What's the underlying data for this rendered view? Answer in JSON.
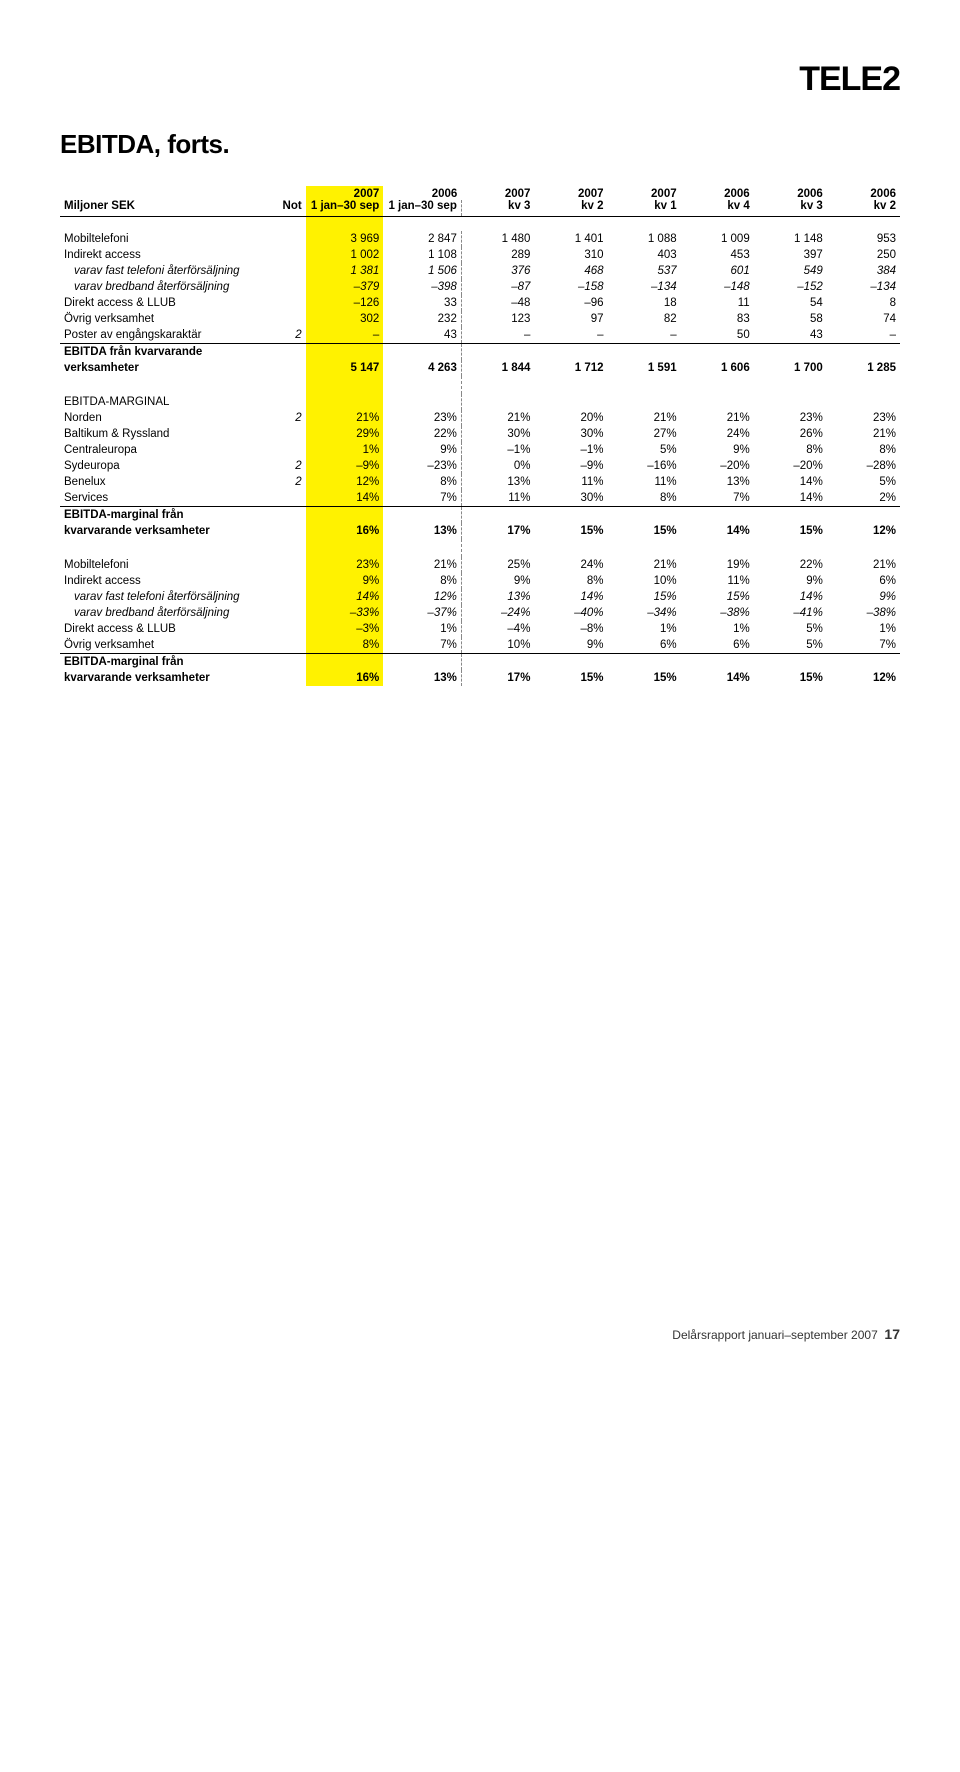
{
  "logo": "TELE2",
  "title": "EBITDA, forts.",
  "columns_left_label": "Miljoner SEK",
  "columns_not_label": "Not",
  "years": [
    "2007",
    "2006",
    "2007",
    "2007",
    "2007",
    "2006",
    "2006",
    "2006"
  ],
  "periods": [
    "1 jan–30 sep",
    "1 jan–30 sep",
    "kv 3",
    "kv 2",
    "kv 1",
    "kv 4",
    "kv 3",
    "kv 2"
  ],
  "highlight_idx": 0,
  "blocks": [
    {
      "rows": [
        {
          "label": "Mobiltelefoni",
          "not": "",
          "cells": [
            "3 969",
            "2 847",
            "1 480",
            "1 401",
            "1 088",
            "1 009",
            "1 148",
            "953"
          ]
        },
        {
          "label": "Indirekt access",
          "not": "",
          "cells": [
            "1 002",
            "1 108",
            "289",
            "310",
            "403",
            "453",
            "397",
            "250"
          ]
        },
        {
          "label": "varav fast telefoni återförsäljning",
          "not": "",
          "italic": true,
          "cells": [
            "1 381",
            "1 506",
            "376",
            "468",
            "537",
            "601",
            "549",
            "384"
          ]
        },
        {
          "label": "varav bredband återförsäljning",
          "not": "",
          "italic": true,
          "cells": [
            "–379",
            "–398",
            "–87",
            "–158",
            "–134",
            "–148",
            "–152",
            "–134"
          ]
        },
        {
          "label": "Direkt access & LLUB",
          "not": "",
          "cells": [
            "–126",
            "33",
            "–48",
            "–96",
            "18",
            "11",
            "54",
            "8"
          ]
        },
        {
          "label": "Övrig verksamhet",
          "not": "",
          "cells": [
            "302",
            "232",
            "123",
            "97",
            "82",
            "83",
            "58",
            "74"
          ]
        },
        {
          "label": "Poster av engångskaraktär",
          "not": "2",
          "cells": [
            "–",
            "43",
            "–",
            "–",
            "–",
            "50",
            "43",
            "–"
          ]
        }
      ],
      "total": {
        "label1": "EBITDA från kvarvarande",
        "label2": "verksamheter",
        "not": "",
        "cells": [
          "5 147",
          "4 263",
          "1 844",
          "1 712",
          "1 591",
          "1 606",
          "1 700",
          "1 285"
        ]
      }
    },
    {
      "heading": "EBITDA-MARGINAL",
      "rows": [
        {
          "label": "Norden",
          "not": "2",
          "cells": [
            "21%",
            "23%",
            "21%",
            "20%",
            "21%",
            "21%",
            "23%",
            "23%"
          ]
        },
        {
          "label": "Baltikum & Ryssland",
          "not": "",
          "cells": [
            "29%",
            "22%",
            "30%",
            "30%",
            "27%",
            "24%",
            "26%",
            "21%"
          ]
        },
        {
          "label": "Centraleuropa",
          "not": "",
          "cells": [
            "1%",
            "9%",
            "–1%",
            "–1%",
            "5%",
            "9%",
            "8%",
            "8%"
          ]
        },
        {
          "label": "Sydeuropa",
          "not": "2",
          "cells": [
            "–9%",
            "–23%",
            "0%",
            "–9%",
            "–16%",
            "–20%",
            "–20%",
            "–28%"
          ]
        },
        {
          "label": "Benelux",
          "not": "2",
          "cells": [
            "12%",
            "8%",
            "13%",
            "11%",
            "11%",
            "13%",
            "14%",
            "5%"
          ]
        },
        {
          "label": "Services",
          "not": "",
          "cells": [
            "14%",
            "7%",
            "11%",
            "30%",
            "8%",
            "7%",
            "14%",
            "2%"
          ]
        }
      ],
      "total": {
        "label1": "EBITDA-marginal från",
        "label2": "kvarvarande verksamheter",
        "not": "",
        "cells": [
          "16%",
          "13%",
          "17%",
          "15%",
          "15%",
          "14%",
          "15%",
          "12%"
        ]
      }
    },
    {
      "rows": [
        {
          "label": "Mobiltelefoni",
          "not": "",
          "cells": [
            "23%",
            "21%",
            "25%",
            "24%",
            "21%",
            "19%",
            "22%",
            "21%"
          ]
        },
        {
          "label": "Indirekt access",
          "not": "",
          "cells": [
            "9%",
            "8%",
            "9%",
            "8%",
            "10%",
            "11%",
            "9%",
            "6%"
          ]
        },
        {
          "label": "varav fast telefoni återförsäljning",
          "not": "",
          "italic": true,
          "cells": [
            "14%",
            "12%",
            "13%",
            "14%",
            "15%",
            "15%",
            "14%",
            "9%"
          ]
        },
        {
          "label": "varav bredband återförsäljning",
          "not": "",
          "italic": true,
          "cells": [
            "–33%",
            "–37%",
            "–24%",
            "–40%",
            "–34%",
            "–38%",
            "–41%",
            "–38%"
          ]
        },
        {
          "label": "Direkt access & LLUB",
          "not": "",
          "cells": [
            "–3%",
            "1%",
            "–4%",
            "–8%",
            "1%",
            "1%",
            "5%",
            "1%"
          ]
        },
        {
          "label": "Övrig verksamhet",
          "not": "",
          "cells": [
            "8%",
            "7%",
            "10%",
            "9%",
            "6%",
            "6%",
            "5%",
            "7%"
          ]
        }
      ],
      "total": {
        "label1": "EBITDA-marginal från",
        "label2": "kvarvarande verksamheter",
        "not": "",
        "cells": [
          "16%",
          "13%",
          "17%",
          "15%",
          "15%",
          "14%",
          "15%",
          "12%"
        ]
      }
    }
  ],
  "footer_text": "Delårsrapport januari–september 2007",
  "footer_page": "17"
}
